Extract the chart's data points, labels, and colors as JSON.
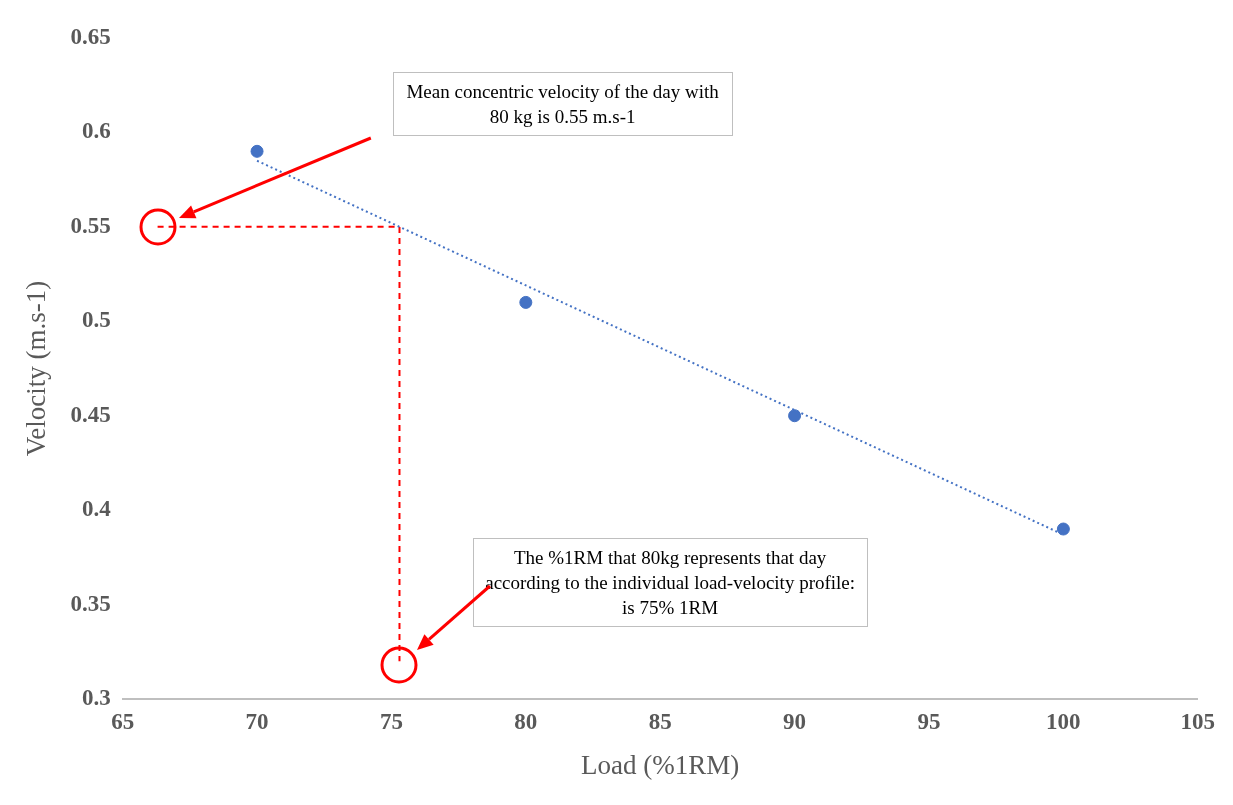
{
  "chart_data": {
    "type": "scatter",
    "xlabel": "Load (%1RM)",
    "ylabel": "Velocity (m.s-1)",
    "xlim": [
      65,
      105
    ],
    "xticks": [
      65,
      70,
      75,
      80,
      85,
      90,
      95,
      100,
      105
    ],
    "ylim": [
      0.3,
      0.65
    ],
    "yticks": [
      0.3,
      0.35,
      0.4,
      0.45,
      0.5,
      0.55,
      0.6,
      0.65
    ],
    "annotations": [
      "Mean concentric velocity of the day with 80 kg is 0.55 m.s-1",
      "The %1RM that 80kg represents that day according to the individual load-velocity profile: is 75% 1RM"
    ],
    "series": [
      {
        "color": "#4472c4",
        "marker": "circle",
        "x": [
          70,
          80,
          90,
          100
        ],
        "values": [
          0.59,
          0.51,
          0.45,
          0.39
        ]
      },
      {
        "type": "line",
        "color": "#4472c4",
        "line_style": "dotted",
        "marker": "none",
        "x": [
          70,
          100
        ],
        "values": [
          0.585,
          0.387
        ]
      },
      {
        "type": "line",
        "color": "#ff0000",
        "line_style": "dashed",
        "x": [
          66.3,
          75.3,
          75.3
        ],
        "values": [
          0.55,
          0.55,
          0.32
        ]
      }
    ]
  }
}
